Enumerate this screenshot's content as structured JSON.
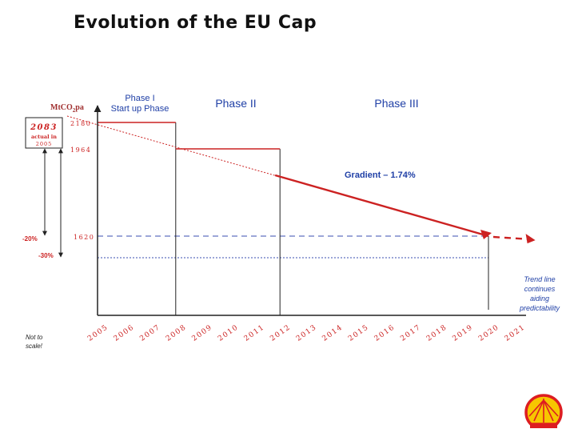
{
  "title": "Evolution of the EU Cap",
  "chart_data": {
    "type": "line",
    "y_unit_label": "MtCO",
    "y_unit_sub": "2",
    "y_unit_suffix": "pa",
    "x": [
      "2005",
      "2006",
      "2007",
      "2008",
      "2009",
      "2010",
      "2011",
      "2012",
      "2013",
      "2014",
      "2015",
      "2016",
      "2017",
      "2018",
      "2019",
      "2020",
      "2021"
    ],
    "phases": [
      {
        "label_lines": [
          "Phase I",
          "Start up Phase"
        ],
        "start": "2005",
        "end": "2008",
        "cap": 2180
      },
      {
        "label_lines": [
          "Phase II"
        ],
        "start": "2008",
        "end": "2012",
        "cap": 1964
      },
      {
        "label_lines": [
          "Phase III"
        ],
        "start": "2012",
        "end": "2020"
      }
    ],
    "gradient": {
      "label": "Gradient – 1.74%",
      "from": [
        "2012",
        1964
      ],
      "to": [
        "2020",
        1620
      ],
      "trend_to": [
        "2021",
        1590
      ]
    },
    "reference_lines": [
      {
        "label": "1620",
        "value": 1620,
        "style": "dashed"
      },
      {
        "label": "",
        "value": 1460,
        "style": "dotted"
      }
    ],
    "tick_labels": [
      {
        "label": "2180",
        "value": 2180
      },
      {
        "label": "1964",
        "value": 1964
      },
      {
        "label": "1620",
        "value": 1620
      }
    ],
    "actual_box": {
      "value": "2083",
      "line1": "actual in",
      "line2": "2005"
    },
    "reduction_arrows": [
      {
        "label": "-20%",
        "to": 1620
      },
      {
        "label": "-30%",
        "to": 1460
      }
    ],
    "notes": {
      "trend": [
        "Trend line",
        "continues",
        "aiding",
        "predictability"
      ],
      "scale": [
        "Not to",
        "scale!"
      ]
    },
    "colors": {
      "cap_line": "#cc2222",
      "reference": "#3a4fb0",
      "phase_label": "#1f3fa6",
      "trend_note": "#1f3fa6",
      "axis": "#222222"
    }
  }
}
